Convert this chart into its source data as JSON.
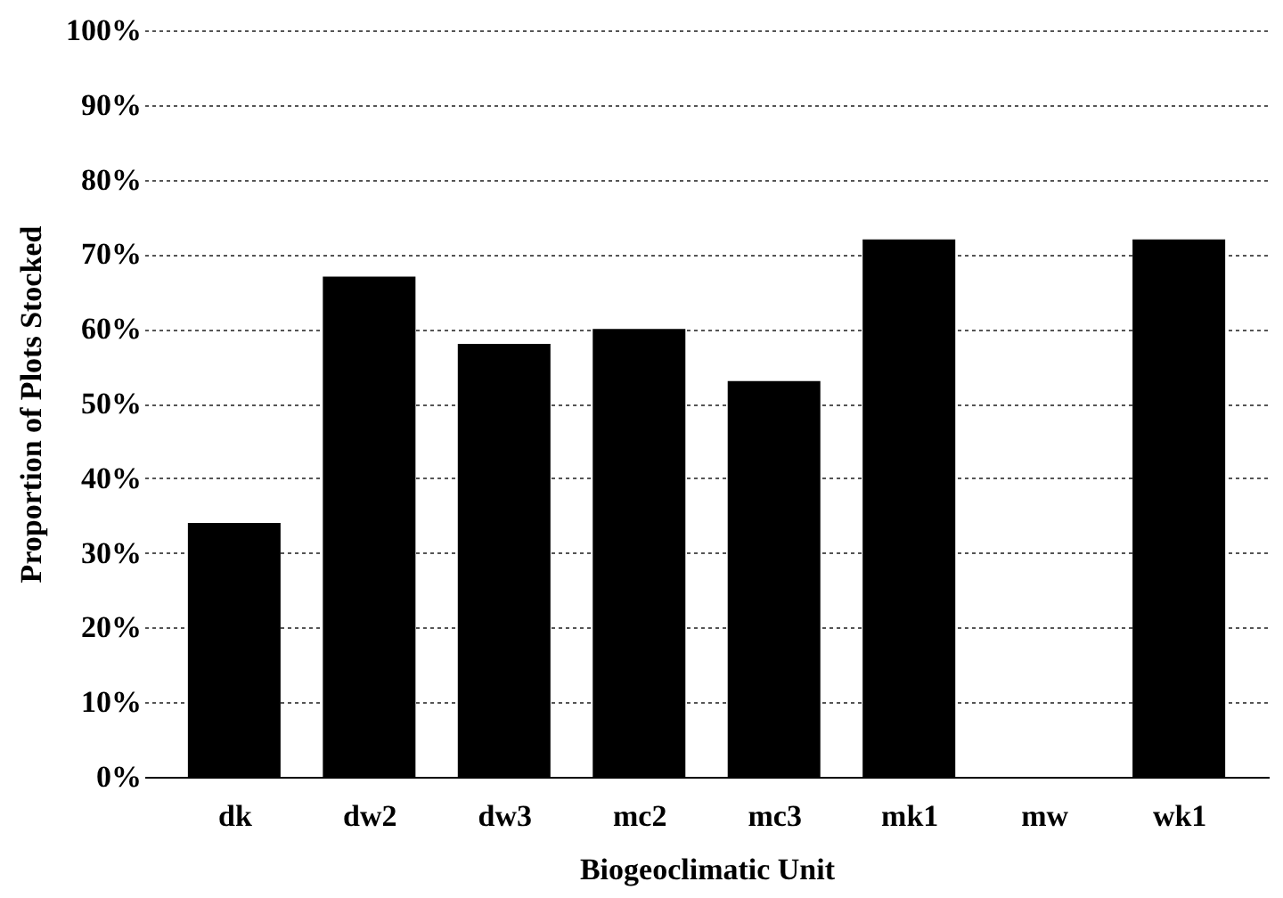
{
  "chart_data": {
    "type": "bar",
    "xlabel": "Biogeoclimatic Unit",
    "ylabel": "Proportion of Plots Stocked",
    "categories": [
      "dk",
      "dw2",
      "dw3",
      "mc2",
      "mc3",
      "mk1",
      "mw",
      "wk1"
    ],
    "values": [
      34,
      67,
      58,
      60,
      53,
      72,
      0,
      72
    ],
    "color": "#000000",
    "ylim": [
      0,
      100
    ],
    "yticks": [
      {
        "value": 0,
        "label": "0%"
      },
      {
        "value": 10,
        "label": "10%"
      },
      {
        "value": 20,
        "label": "20%"
      },
      {
        "value": 30,
        "label": "30%"
      },
      {
        "value": 40,
        "label": "40%"
      },
      {
        "value": 50,
        "label": "50%"
      },
      {
        "value": 60,
        "label": "60%"
      },
      {
        "value": 70,
        "label": "70%"
      },
      {
        "value": 80,
        "label": "80%"
      },
      {
        "value": 90,
        "label": "90%"
      },
      {
        "value": 100,
        "label": "100%"
      }
    ],
    "grid": "y"
  }
}
